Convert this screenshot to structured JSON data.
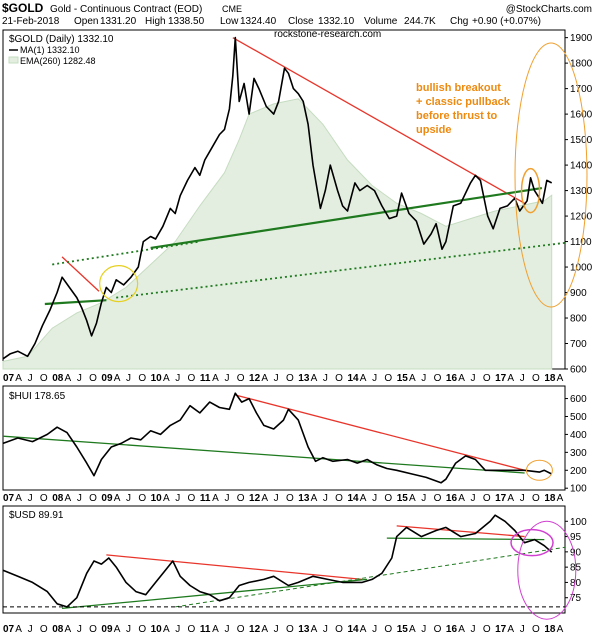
{
  "header": {
    "symbol": "$GOLD",
    "name": "Gold - Continuous Contract (EOD)",
    "exchange": "CME",
    "watermark": "@StockCharts.com",
    "date": "21-Feb-2018",
    "open_label": "Open",
    "open": "1331.20",
    "high_label": "High",
    "high": "1338.50",
    "low_label": "Low",
    "low": "1324.40",
    "close_label": "Close",
    "close": "1332.10",
    "volume_label": "Volume",
    "volume": "244.7K",
    "chg_label": "Chg",
    "chg": "+0.90 (+0.07%)",
    "site": "rockstone-research.com"
  },
  "colors": {
    "price_line": "#000000",
    "ema_fill": "#e3eee0",
    "ema_line": "#c6dcc1",
    "trend_red": "#e8352b",
    "trend_green": "#1f7a1f",
    "annot_orange": "#f0a030",
    "annot_yellow": "#e6d020",
    "annot_magenta": "#d040d0",
    "note_text": "#ee8a10"
  },
  "x_axis": {
    "labels": [
      {
        "t": "07",
        "bold": true,
        "x": 2007.0
      },
      {
        "t": "A",
        "bold": false,
        "x": 2007.25
      },
      {
        "t": "J",
        "bold": false,
        "x": 2007.5
      },
      {
        "t": "O",
        "bold": false,
        "x": 2007.75
      },
      {
        "t": "08",
        "bold": true,
        "x": 2008.0
      },
      {
        "t": "A",
        "bold": false,
        "x": 2008.25
      },
      {
        "t": "J",
        "bold": false,
        "x": 2008.5
      },
      {
        "t": "O",
        "bold": false,
        "x": 2008.75
      },
      {
        "t": "09",
        "bold": true,
        "x": 2009.0
      },
      {
        "t": "A",
        "bold": false,
        "x": 2009.25
      },
      {
        "t": "J",
        "bold": false,
        "x": 2009.5
      },
      {
        "t": "O",
        "bold": false,
        "x": 2009.75
      },
      {
        "t": "10",
        "bold": true,
        "x": 2010.0
      },
      {
        "t": "A",
        "bold": false,
        "x": 2010.25
      },
      {
        "t": "J",
        "bold": false,
        "x": 2010.5
      },
      {
        "t": "O",
        "bold": false,
        "x": 2010.75
      },
      {
        "t": "11",
        "bold": true,
        "x": 2011.0
      },
      {
        "t": "A",
        "bold": false,
        "x": 2011.25
      },
      {
        "t": "J",
        "bold": false,
        "x": 2011.5
      },
      {
        "t": "O",
        "bold": false,
        "x": 2011.75
      },
      {
        "t": "12",
        "bold": true,
        "x": 2012.0
      },
      {
        "t": "A",
        "bold": false,
        "x": 2012.25
      },
      {
        "t": "J",
        "bold": false,
        "x": 2012.5
      },
      {
        "t": "O",
        "bold": false,
        "x": 2012.75
      },
      {
        "t": "13",
        "bold": true,
        "x": 2013.0
      },
      {
        "t": "A",
        "bold": false,
        "x": 2013.25
      },
      {
        "t": "J",
        "bold": false,
        "x": 2013.5
      },
      {
        "t": "O",
        "bold": false,
        "x": 2013.75
      },
      {
        "t": "14",
        "bold": true,
        "x": 2014.0
      },
      {
        "t": "A",
        "bold": false,
        "x": 2014.25
      },
      {
        "t": "J",
        "bold": false,
        "x": 2014.5
      },
      {
        "t": "O",
        "bold": false,
        "x": 2014.75
      },
      {
        "t": "15",
        "bold": true,
        "x": 2015.0
      },
      {
        "t": "A",
        "bold": false,
        "x": 2015.25
      },
      {
        "t": "J",
        "bold": false,
        "x": 2015.5
      },
      {
        "t": "O",
        "bold": false,
        "x": 2015.75
      },
      {
        "t": "16",
        "bold": true,
        "x": 2016.0
      },
      {
        "t": "A",
        "bold": false,
        "x": 2016.25
      },
      {
        "t": "J",
        "bold": false,
        "x": 2016.5
      },
      {
        "t": "O",
        "bold": false,
        "x": 2016.75
      },
      {
        "t": "17",
        "bold": true,
        "x": 2017.0
      },
      {
        "t": "A",
        "bold": false,
        "x": 2017.25
      },
      {
        "t": "J",
        "bold": false,
        "x": 2017.5
      },
      {
        "t": "O",
        "bold": false,
        "x": 2017.75
      },
      {
        "t": "18",
        "bold": true,
        "x": 2018.0
      },
      {
        "t": "A",
        "bold": false,
        "x": 2018.25
      }
    ],
    "range": [
      2007.0,
      2018.42
    ]
  },
  "chart_data": [
    {
      "type": "line",
      "id": "gold",
      "legend_title": "$GOLD (Daily) 1332.10",
      "series": [
        {
          "name": "MA(1) 1332.10",
          "style": "line",
          "color": "#000000",
          "x": [
            2007.0,
            2007.15,
            2007.3,
            2007.5,
            2007.65,
            2007.8,
            2007.95,
            2008.1,
            2008.2,
            2008.35,
            2008.5,
            2008.6,
            2008.7,
            2008.8,
            2008.9,
            2009.0,
            2009.1,
            2009.2,
            2009.3,
            2009.45,
            2009.6,
            2009.75,
            2009.85,
            2010.0,
            2010.1,
            2010.25,
            2010.4,
            2010.5,
            2010.6,
            2010.75,
            2010.9,
            2011.0,
            2011.1,
            2011.25,
            2011.4,
            2011.5,
            2011.6,
            2011.67,
            2011.72,
            2011.8,
            2011.9,
            2012.0,
            2012.1,
            2012.2,
            2012.35,
            2012.5,
            2012.6,
            2012.72,
            2012.8,
            2012.9,
            2013.0,
            2013.1,
            2013.2,
            2013.3,
            2013.45,
            2013.55,
            2013.65,
            2013.8,
            2013.9,
            2014.0,
            2014.15,
            2014.25,
            2014.4,
            2014.55,
            2014.7,
            2014.85,
            2015.0,
            2015.1,
            2015.25,
            2015.4,
            2015.55,
            2015.7,
            2015.8,
            2015.92,
            2016.0,
            2016.15,
            2016.3,
            2016.5,
            2016.6,
            2016.7,
            2016.85,
            2016.96,
            2017.1,
            2017.25,
            2017.4,
            2017.5,
            2017.65,
            2017.72,
            2017.8,
            2017.9,
            2017.96,
            2018.05,
            2018.15
          ],
          "y": [
            640,
            660,
            670,
            650,
            700,
            770,
            830,
            900,
            960,
            920,
            880,
            840,
            790,
            730,
            780,
            860,
            920,
            900,
            950,
            930,
            960,
            1000,
            1100,
            1120,
            1110,
            1160,
            1230,
            1210,
            1280,
            1340,
            1390,
            1360,
            1420,
            1470,
            1520,
            1540,
            1620,
            1750,
            1900,
            1650,
            1720,
            1600,
            1740,
            1700,
            1630,
            1600,
            1650,
            1780,
            1760,
            1700,
            1680,
            1650,
            1560,
            1400,
            1230,
            1300,
            1400,
            1300,
            1240,
            1220,
            1330,
            1300,
            1320,
            1300,
            1240,
            1190,
            1200,
            1290,
            1210,
            1180,
            1090,
            1130,
            1170,
            1070,
            1100,
            1240,
            1250,
            1330,
            1360,
            1340,
            1200,
            1150,
            1230,
            1240,
            1270,
            1220,
            1260,
            1350,
            1300,
            1270,
            1250,
            1340,
            1330
          ]
        },
        {
          "name": "EMA(260) 1282.48",
          "style": "area",
          "color": "#c6dcc1",
          "x": [
            2007.0,
            2007.5,
            2008.0,
            2008.5,
            2009.0,
            2009.5,
            2010.0,
            2010.5,
            2011.0,
            2011.5,
            2011.8,
            2012.0,
            2012.5,
            2013.0,
            2013.5,
            2014.0,
            2014.5,
            2015.0,
            2015.5,
            2016.0,
            2016.5,
            2017.0,
            2017.5,
            2018.0,
            2018.15
          ],
          "y": [
            630,
            650,
            760,
            820,
            860,
            920,
            1010,
            1100,
            1240,
            1370,
            1500,
            1600,
            1640,
            1660,
            1560,
            1420,
            1320,
            1250,
            1210,
            1160,
            1190,
            1220,
            1240,
            1260,
            1282
          ]
        }
      ],
      "trendlines": [
        {
          "color": "red",
          "style": "solid",
          "x1": 2008.2,
          "y1": 1040,
          "x2": 2008.95,
          "y2": 905
        },
        {
          "color": "red",
          "style": "solid",
          "x1": 2011.67,
          "y1": 1900,
          "x2": 2017.6,
          "y2": 1250
        },
        {
          "color": "green",
          "style": "solid",
          "x1": 2007.85,
          "y1": 855,
          "x2": 2009.1,
          "y2": 870
        },
        {
          "color": "green",
          "style": "solid",
          "x1": 2010.0,
          "y1": 1075,
          "x2": 2017.95,
          "y2": 1310
        },
        {
          "color": "green",
          "style": "dotted",
          "x1": 2008.0,
          "y1": 1010,
          "x2": 2011.0,
          "y2": 1100
        },
        {
          "color": "green",
          "style": "dotted",
          "x1": 2009.3,
          "y1": 880,
          "x2": 2018.42,
          "y2": 1095
        }
      ],
      "ylim": [
        600,
        1930
      ],
      "yticks": [
        600,
        700,
        800,
        900,
        1000,
        1100,
        1200,
        1300,
        1400,
        1500,
        1600,
        1700,
        1800,
        1900
      ],
      "ytick_labels": [
        "600",
        "700",
        "800",
        "900",
        "1000",
        "1100",
        "1200",
        "1300",
        "1400",
        "1500",
        "1600",
        "1700",
        "1800",
        "1900"
      ],
      "annotation": "bullish breakout + classic pullback before thrust to upside",
      "annotation_lines": [
        "bullish breakout",
        "+ classic pullback",
        "before thrust to",
        "upside"
      ]
    },
    {
      "type": "line",
      "id": "hui",
      "legend_title": "$HUI 178.65",
      "series": [
        {
          "name": "$HUI",
          "style": "line",
          "color": "#000000",
          "x": [
            2007.0,
            2007.3,
            2007.6,
            2007.9,
            2008.1,
            2008.3,
            2008.5,
            2008.7,
            2008.85,
            2009.0,
            2009.2,
            2009.4,
            2009.6,
            2009.8,
            2010.0,
            2010.2,
            2010.4,
            2010.6,
            2010.8,
            2011.0,
            2011.2,
            2011.4,
            2011.6,
            2011.72,
            2011.85,
            2012.0,
            2012.15,
            2012.3,
            2012.5,
            2012.7,
            2012.8,
            2013.0,
            2013.2,
            2013.35,
            2013.5,
            2013.7,
            2014.0,
            2014.2,
            2014.4,
            2014.6,
            2014.8,
            2015.0,
            2015.3,
            2015.6,
            2015.9,
            2016.0,
            2016.2,
            2016.4,
            2016.6,
            2016.8,
            2017.0,
            2017.3,
            2017.6,
            2017.9,
            2018.0,
            2018.15
          ],
          "y": [
            350,
            380,
            360,
            400,
            440,
            410,
            330,
            240,
            170,
            260,
            330,
            350,
            380,
            370,
            420,
            400,
            450,
            480,
            560,
            520,
            580,
            550,
            540,
            630,
            580,
            600,
            520,
            450,
            430,
            480,
            540,
            480,
            330,
            250,
            270,
            250,
            260,
            240,
            260,
            230,
            210,
            200,
            180,
            160,
            130,
            150,
            240,
            280,
            260,
            200,
            200,
            200,
            200,
            190,
            200,
            179
          ]
        }
      ],
      "trendlines": [
        {
          "color": "red",
          "style": "solid",
          "x1": 2011.72,
          "y1": 620,
          "x2": 2017.6,
          "y2": 200
        },
        {
          "color": "green",
          "style": "solid",
          "x1": 2007.0,
          "y1": 390,
          "x2": 2017.6,
          "y2": 185
        }
      ],
      "ylim": [
        90,
        670
      ],
      "yticks": [
        100,
        200,
        300,
        400,
        500,
        600
      ],
      "ytick_labels": [
        "100",
        "200",
        "300",
        "400",
        "500",
        "600"
      ]
    },
    {
      "type": "line",
      "id": "usd",
      "legend_title": "$USD 89.91",
      "series": [
        {
          "name": "$USD",
          "style": "line",
          "color": "#000000",
          "x": [
            2007.0,
            2007.3,
            2007.6,
            2007.9,
            2008.1,
            2008.3,
            2008.5,
            2008.7,
            2008.85,
            2009.0,
            2009.15,
            2009.3,
            2009.5,
            2009.7,
            2009.9,
            2010.1,
            2010.3,
            2010.45,
            2010.6,
            2010.8,
            2011.0,
            2011.2,
            2011.4,
            2011.6,
            2011.8,
            2012.0,
            2012.3,
            2012.5,
            2012.8,
            2013.0,
            2013.3,
            2013.6,
            2013.9,
            2014.1,
            2014.3,
            2014.5,
            2014.7,
            2014.9,
            2015.0,
            2015.2,
            2015.5,
            2015.8,
            2016.0,
            2016.3,
            2016.6,
            2016.9,
            2017.0,
            2017.2,
            2017.4,
            2017.6,
            2017.8,
            2018.0,
            2018.15
          ],
          "y": [
            84,
            82,
            80,
            77,
            73,
            72,
            75,
            83,
            87,
            86,
            88,
            85,
            80,
            77,
            76,
            80,
            84,
            87,
            82,
            79,
            77,
            76,
            74,
            75,
            79,
            80,
            81,
            82,
            79,
            80,
            82,
            81,
            80,
            80,
            80,
            81,
            83,
            88,
            95,
            98,
            95,
            97,
            98,
            95,
            96,
            100,
            102,
            100,
            97,
            93,
            94,
            92,
            89.9
          ]
        }
      ],
      "trendlines": [
        {
          "color": "red",
          "style": "solid",
          "x1": 2009.1,
          "y1": 89,
          "x2": 2014.3,
          "y2": 81
        },
        {
          "color": "red",
          "style": "solid",
          "x1": 2015.0,
          "y1": 98.5,
          "x2": 2017.6,
          "y2": 95
        },
        {
          "color": "green",
          "style": "solid",
          "x1": 2008.2,
          "y1": 71.5,
          "x2": 2014.4,
          "y2": 81
        },
        {
          "color": "green",
          "style": "solid",
          "x1": 2014.8,
          "y1": 94.5,
          "x2": 2018.0,
          "y2": 94
        },
        {
          "color": "green",
          "style": "dashed",
          "x1": 2010.5,
          "y1": 72,
          "x2": 2018.42,
          "y2": 91.5
        },
        {
          "color": "black",
          "style": "dashed",
          "x1": 2007.0,
          "y1": 72,
          "x2": 2018.42,
          "y2": 72
        }
      ],
      "ylim": [
        70,
        105
      ],
      "yticks": [
        75,
        80,
        85,
        90,
        95,
        100
      ],
      "ytick_labels": [
        "75",
        "80",
        "85",
        "90",
        "95",
        "100"
      ]
    }
  ]
}
